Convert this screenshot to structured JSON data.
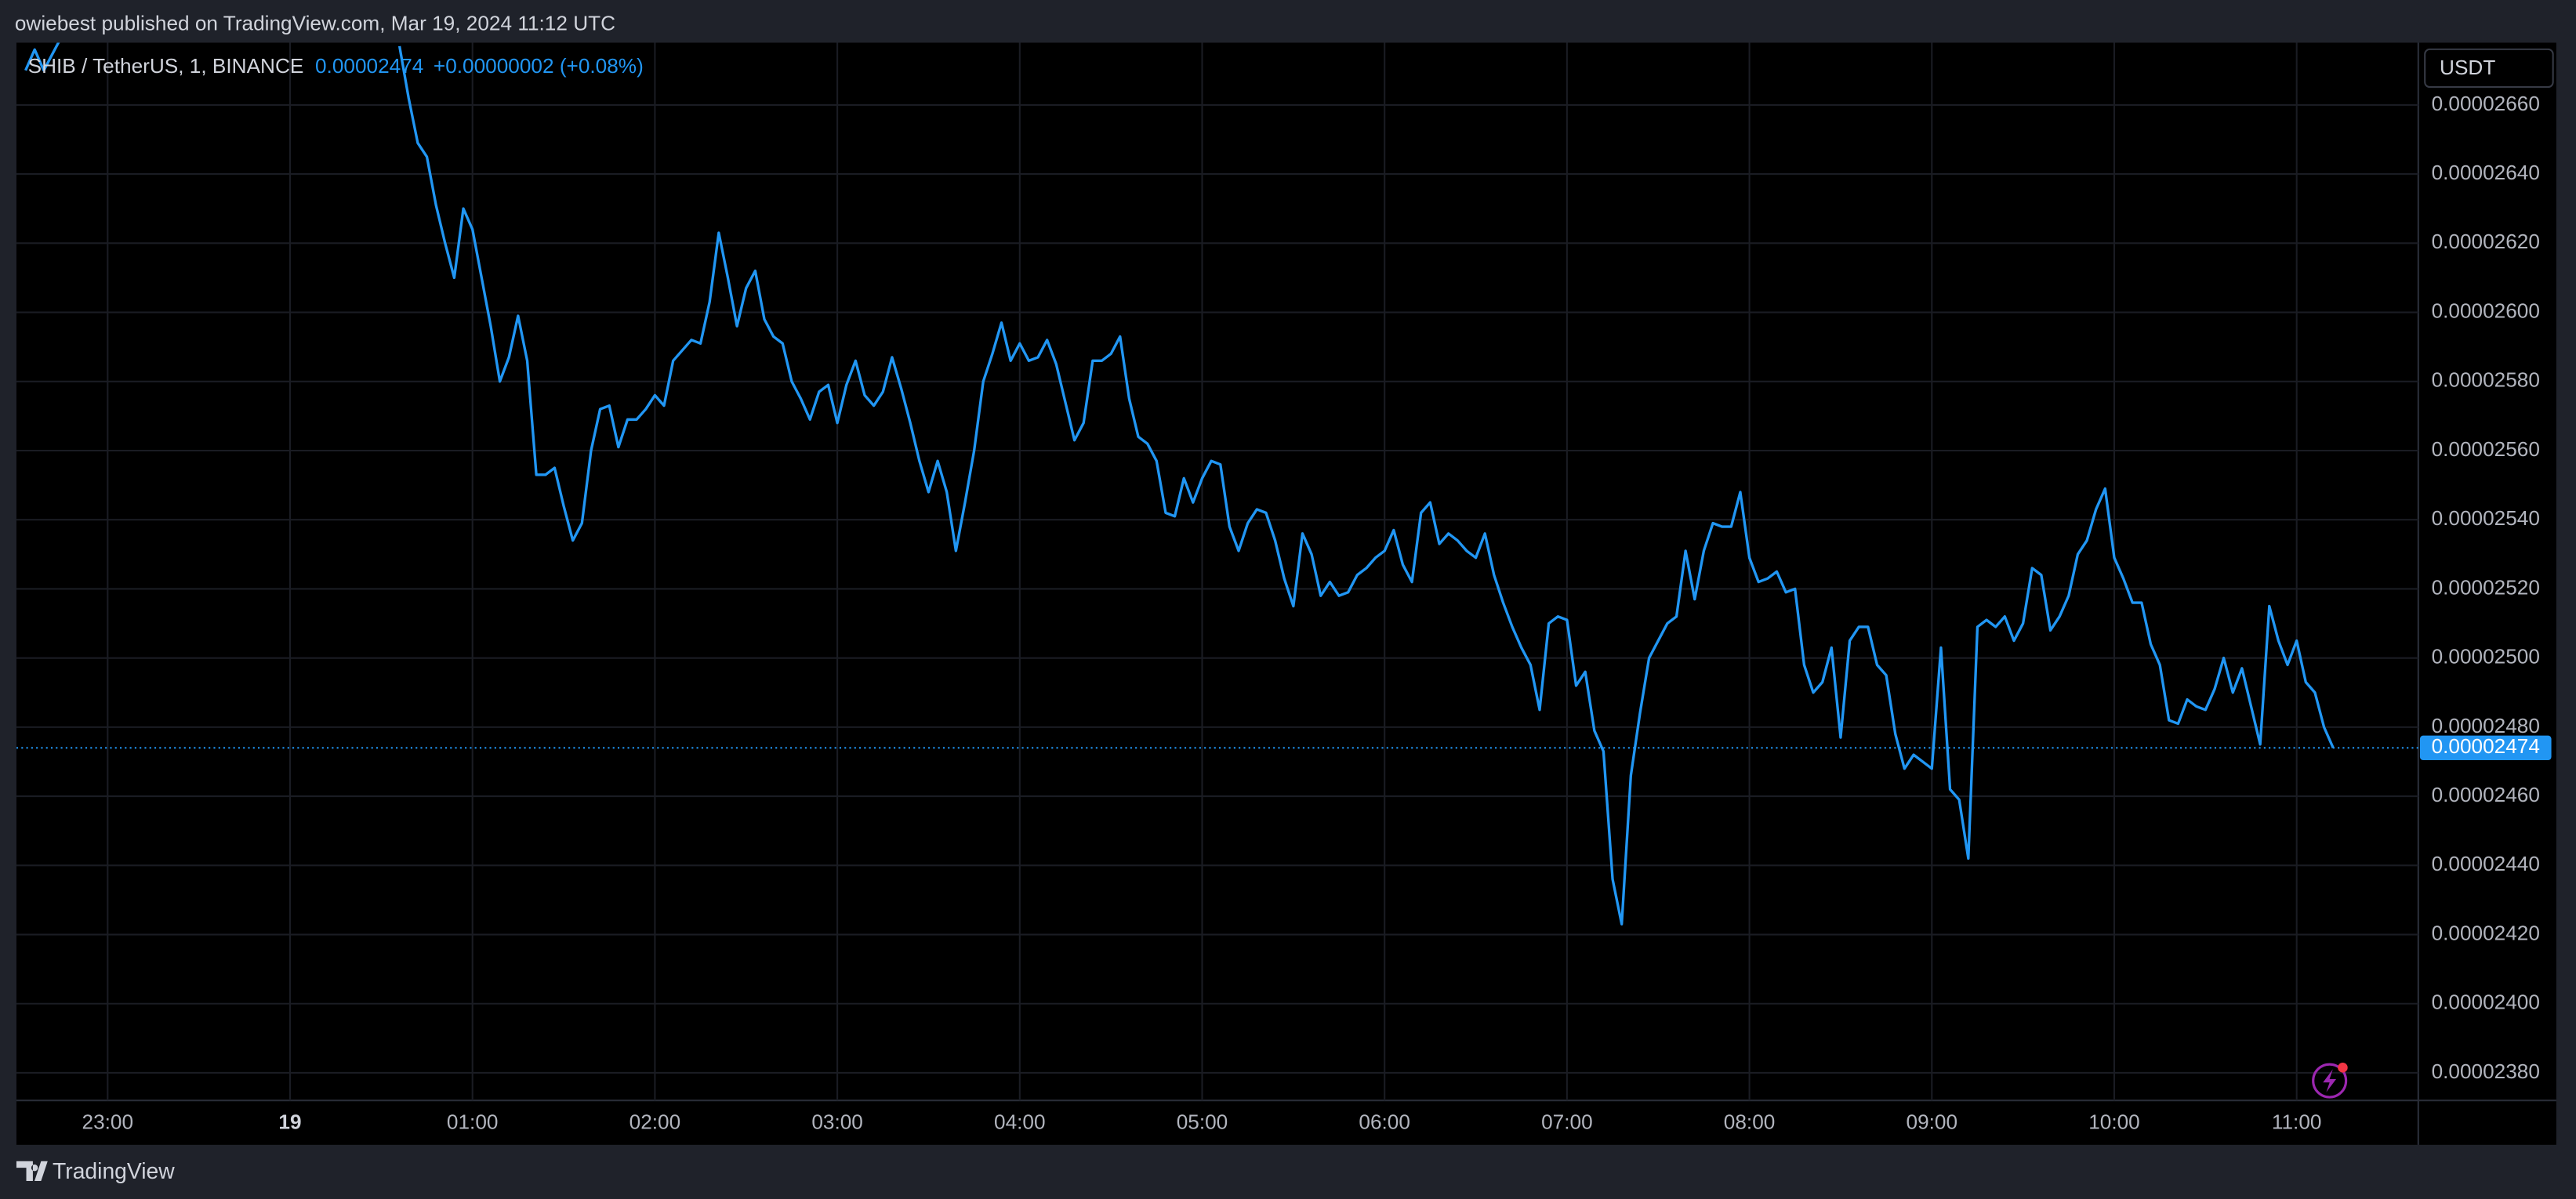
{
  "header": {
    "text": "owiebest published on TradingView.com, Mar 19, 2024 11:12 UTC"
  },
  "footer": {
    "brand": "TradingView"
  },
  "chart_data": {
    "type": "line",
    "title": "SHIB / TetherUS, 1, BINANCE",
    "change": "+0.00000002 (+0.08%)",
    "currency": "USDT",
    "grid": true,
    "price_line": true,
    "xlim": [
      "22:30",
      "11:40"
    ],
    "xticks": [
      "23:00",
      {
        "value": "00:00",
        "label": "19"
      },
      "01:00",
      "02:00",
      "03:00",
      "04:00",
      "05:00",
      "06:00",
      "07:00",
      "08:00",
      "09:00",
      "10:00",
      "11:00"
    ],
    "ylim": [
      2.372e-05,
      2.678e-05
    ],
    "yticks": [
      {
        "value": 2.66e-05,
        "label": "0.00002660"
      },
      {
        "value": 2.64e-05,
        "label": "0.00002640"
      },
      {
        "value": 2.62e-05,
        "label": "0.00002620"
      },
      {
        "value": 2.6e-05,
        "label": "0.00002600"
      },
      {
        "value": 2.58e-05,
        "label": "0.00002580"
      },
      {
        "value": 2.56e-05,
        "label": "0.00002560"
      },
      {
        "value": 2.54e-05,
        "label": "0.00002540"
      },
      {
        "value": 2.52e-05,
        "label": "0.00002520"
      },
      {
        "value": 2.5e-05,
        "label": "0.00002500"
      },
      {
        "value": 2.48e-05,
        "label": "0.00002480"
      },
      {
        "value": 2.46e-05,
        "label": "0.00002460"
      },
      {
        "value": 2.44e-05,
        "label": "0.00002440"
      },
      {
        "value": 2.42e-05,
        "label": "0.00002420"
      },
      {
        "value": 2.4e-05,
        "label": "0.00002400"
      },
      {
        "value": 2.38e-05,
        "label": "0.00002380"
      }
    ],
    "x": [
      "22:33",
      "22:36",
      "22:39",
      "22:42",
      "22:45",
      "22:48",
      "00:36",
      "00:39",
      "00:42",
      "00:45",
      "00:48",
      "00:51",
      "00:54",
      "00:57",
      "01:00",
      "01:03",
      "01:06",
      "01:09",
      "01:12",
      "01:15",
      "01:18",
      "01:21",
      "01:24",
      "01:27",
      "01:30",
      "01:33",
      "01:36",
      "01:39",
      "01:42",
      "01:45",
      "01:48",
      "01:51",
      "01:54",
      "01:57",
      "02:00",
      "02:03",
      "02:06",
      "02:09",
      "02:12",
      "02:15",
      "02:18",
      "02:21",
      "02:24",
      "02:27",
      "02:30",
      "02:33",
      "02:36",
      "02:39",
      "02:42",
      "02:45",
      "02:48",
      "02:51",
      "02:54",
      "02:57",
      "03:00",
      "03:03",
      "03:06",
      "03:09",
      "03:12",
      "03:15",
      "03:18",
      "03:21",
      "03:24",
      "03:27",
      "03:30",
      "03:33",
      "03:36",
      "03:39",
      "03:42",
      "03:45",
      "03:48",
      "03:51",
      "03:54",
      "03:57",
      "04:00",
      "04:03",
      "04:06",
      "04:09",
      "04:12",
      "04:15",
      "04:18",
      "04:21",
      "04:24",
      "04:27",
      "04:30",
      "04:33",
      "04:36",
      "04:39",
      "04:42",
      "04:45",
      "04:48",
      "04:51",
      "04:54",
      "04:57",
      "05:00",
      "05:03",
      "05:06",
      "05:09",
      "05:12",
      "05:15",
      "05:18",
      "05:21",
      "05:24",
      "05:27",
      "05:30",
      "05:33",
      "05:36",
      "05:39",
      "05:42",
      "05:45",
      "05:48",
      "05:51",
      "05:54",
      "05:57",
      "06:00",
      "06:03",
      "06:06",
      "06:09",
      "06:12",
      "06:15",
      "06:18",
      "06:21",
      "06:24",
      "06:27",
      "06:30",
      "06:33",
      "06:36",
      "06:39",
      "06:42",
      "06:45",
      "06:48",
      "06:51",
      "06:54",
      "06:57",
      "07:00",
      "07:03",
      "07:06",
      "07:09",
      "07:12",
      "07:15",
      "07:18",
      "07:21",
      "07:24",
      "07:27",
      "07:30",
      "07:33",
      "07:36",
      "07:39",
      "07:42",
      "07:45",
      "07:48",
      "07:51",
      "07:54",
      "07:57",
      "08:00",
      "08:03",
      "08:06",
      "08:09",
      "08:12",
      "08:15",
      "08:18",
      "08:21",
      "08:24",
      "08:27",
      "08:30",
      "08:33",
      "08:36",
      "08:39",
      "08:42",
      "08:45",
      "08:48",
      "08:51",
      "08:54",
      "08:57",
      "09:00",
      "09:03",
      "09:06",
      "09:09",
      "09:12",
      "09:15",
      "09:18",
      "09:21",
      "09:24",
      "09:27",
      "09:30",
      "09:33",
      "09:36",
      "09:39",
      "09:42",
      "09:45",
      "09:48",
      "09:51",
      "09:54",
      "09:57",
      "10:00",
      "10:03",
      "10:06",
      "10:09",
      "10:12",
      "10:15",
      "10:18",
      "10:21",
      "10:24",
      "10:27",
      "10:30",
      "10:33",
      "10:36",
      "10:39",
      "10:42",
      "10:45",
      "10:48",
      "10:51",
      "10:54",
      "10:57",
      "11:00",
      "11:03",
      "11:06",
      "11:09",
      "11:12"
    ],
    "series": [
      {
        "color": "#2196f3",
        "values": [
          2.67e-05,
          2.676e-05,
          2.67e-05,
          2.675e-05,
          2.68e-05,
          null,
          2.677e-05,
          2.662e-05,
          2.649e-05,
          2.645e-05,
          2.631e-05,
          2.62e-05,
          2.61e-05,
          2.63e-05,
          2.624e-05,
          2.61e-05,
          2.596e-05,
          2.58e-05,
          2.587e-05,
          2.599e-05,
          2.586e-05,
          2.553e-05,
          2.553e-05,
          2.555e-05,
          2.544e-05,
          2.534e-05,
          2.539e-05,
          2.56e-05,
          2.572e-05,
          2.573e-05,
          2.561e-05,
          2.569e-05,
          2.569e-05,
          2.572e-05,
          2.576e-05,
          2.573e-05,
          2.586e-05,
          2.589e-05,
          2.592e-05,
          2.591e-05,
          2.603e-05,
          2.623e-05,
          2.61e-05,
          2.596e-05,
          2.607e-05,
          2.612e-05,
          2.598e-05,
          2.593e-05,
          2.591e-05,
          2.58e-05,
          2.575e-05,
          2.569e-05,
          2.577e-05,
          2.579e-05,
          2.568e-05,
          2.579e-05,
          2.586e-05,
          2.576e-05,
          2.573e-05,
          2.577e-05,
          2.587e-05,
          2.578e-05,
          2.568e-05,
          2.557e-05,
          2.548e-05,
          2.557e-05,
          2.548e-05,
          2.531e-05,
          2.545e-05,
          2.56e-05,
          2.58e-05,
          2.588e-05,
          2.597e-05,
          2.586e-05,
          2.591e-05,
          2.586e-05,
          2.587e-05,
          2.592e-05,
          2.585e-05,
          2.574e-05,
          2.563e-05,
          2.568e-05,
          2.586e-05,
          2.586e-05,
          2.588e-05,
          2.593e-05,
          2.575e-05,
          2.564e-05,
          2.562e-05,
          2.557e-05,
          2.542e-05,
          2.541e-05,
          2.552e-05,
          2.545e-05,
          2.552e-05,
          2.557e-05,
          2.556e-05,
          2.538e-05,
          2.531e-05,
          2.539e-05,
          2.543e-05,
          2.542e-05,
          2.534e-05,
          2.523e-05,
          2.515e-05,
          2.536e-05,
          2.53e-05,
          2.518e-05,
          2.522e-05,
          2.518e-05,
          2.519e-05,
          2.524e-05,
          2.526e-05,
          2.529e-05,
          2.531e-05,
          2.537e-05,
          2.527e-05,
          2.522e-05,
          2.542e-05,
          2.545e-05,
          2.533e-05,
          2.536e-05,
          2.534e-05,
          2.531e-05,
          2.529e-05,
          2.536e-05,
          2.524e-05,
          2.516e-05,
          2.509e-05,
          2.503e-05,
          2.498e-05,
          2.485e-05,
          2.51e-05,
          2.512e-05,
          2.511e-05,
          2.492e-05,
          2.496e-05,
          2.479e-05,
          2.473e-05,
          2.436e-05,
          2.423e-05,
          2.466e-05,
          2.484e-05,
          2.5e-05,
          2.505e-05,
          2.51e-05,
          2.512e-05,
          2.531e-05,
          2.517e-05,
          2.531e-05,
          2.539e-05,
          2.538e-05,
          2.538e-05,
          2.548e-05,
          2.529e-05,
          2.522e-05,
          2.523e-05,
          2.525e-05,
          2.519e-05,
          2.52e-05,
          2.498e-05,
          2.49e-05,
          2.493e-05,
          2.503e-05,
          2.477e-05,
          2.505e-05,
          2.509e-05,
          2.509e-05,
          2.498e-05,
          2.495e-05,
          2.478e-05,
          2.468e-05,
          2.472e-05,
          2.47e-05,
          2.468e-05,
          2.503e-05,
          2.462e-05,
          2.459e-05,
          2.442e-05,
          2.509e-05,
          2.511e-05,
          2.509e-05,
          2.512e-05,
          2.505e-05,
          2.51e-05,
          2.526e-05,
          2.524e-05,
          2.508e-05,
          2.512e-05,
          2.518e-05,
          2.53e-05,
          2.534e-05,
          2.543e-05,
          2.549e-05,
          2.529e-05,
          2.523e-05,
          2.516e-05,
          2.516e-05,
          2.504e-05,
          2.498e-05,
          2.482e-05,
          2.481e-05,
          2.488e-05,
          2.486e-05,
          2.485e-05,
          2.491e-05,
          2.5e-05,
          2.49e-05,
          2.497e-05,
          2.486e-05,
          2.475e-05,
          2.515e-05,
          2.505e-05,
          2.498e-05,
          2.505e-05,
          2.493e-05,
          2.49e-05,
          2.48e-05,
          2.474e-05
        ]
      }
    ]
  }
}
